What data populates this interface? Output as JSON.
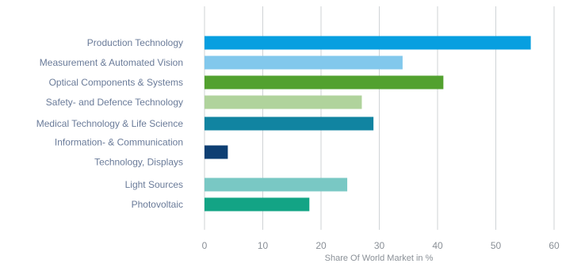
{
  "chart_data": {
    "type": "bar",
    "orientation": "horizontal",
    "categories": [
      [
        "Production Technology"
      ],
      [
        "Measurement & Automated Vision"
      ],
      [
        "Optical Components & Systems"
      ],
      [
        "Safety- and Defence Technology"
      ],
      [
        "Medical Technology & Life Science"
      ],
      [
        "Information- & Communication",
        "Technology, Displays"
      ],
      [
        "Light Sources"
      ],
      [
        "Photovoltaic"
      ]
    ],
    "values": [
      56,
      34,
      41,
      27,
      29,
      4,
      24.5,
      18
    ],
    "colors": [
      "#079fe0",
      "#82c8ec",
      "#52a12f",
      "#b0d39c",
      "#1184a1",
      "#0e3f73",
      "#79c8c4",
      "#13a485"
    ],
    "xlabel": "Share Of World Market in %",
    "ylabel": "",
    "xlim": [
      0,
      60
    ],
    "xticks": [
      "0",
      "10",
      "20",
      "30",
      "40",
      "50",
      "60"
    ],
    "grid": "vertical"
  }
}
